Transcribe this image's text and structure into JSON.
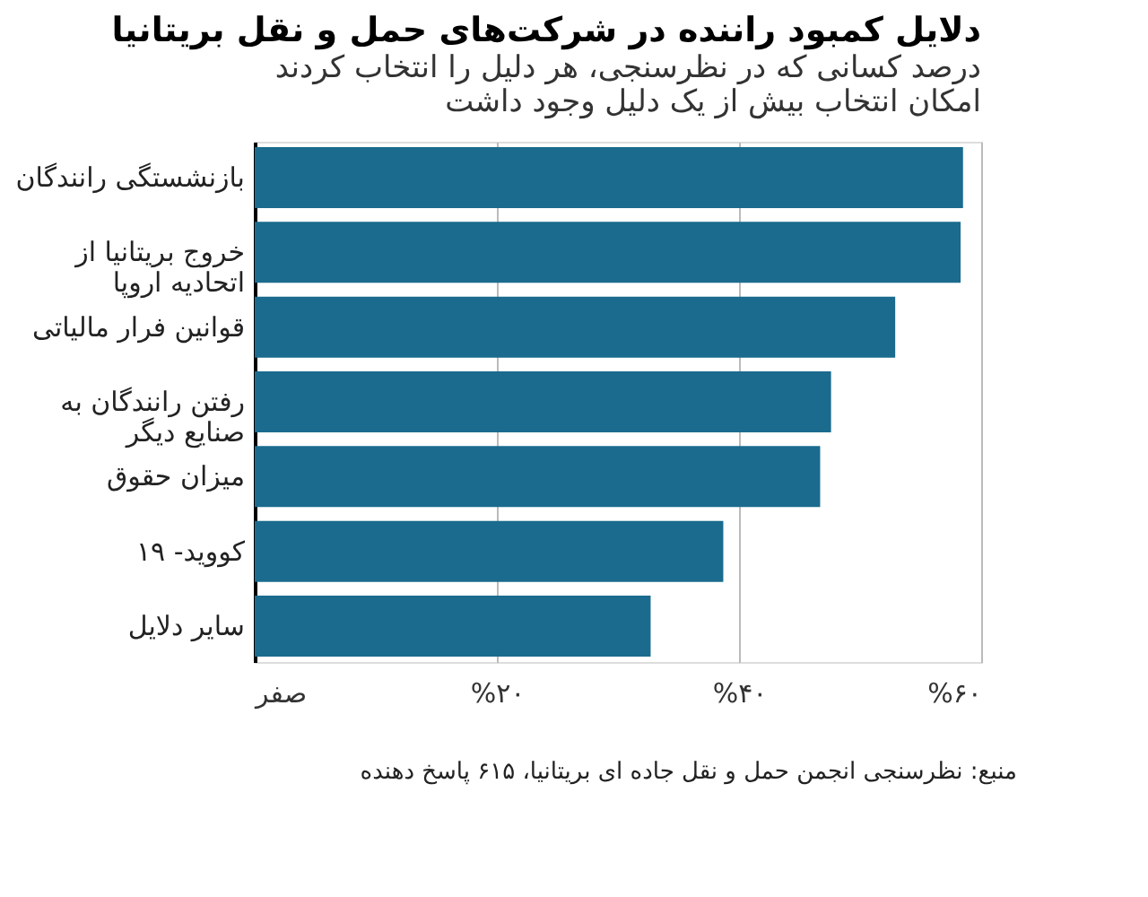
{
  "chart_data": {
    "type": "bar",
    "orientation": "horizontal",
    "title": "دلایل کمبود راننده در شرکت‌های حمل و نقل بریتانیا",
    "subtitle": "درصد کسانی که در نظرسنجی، هر دلیل را انتخاب کردند\nامکان انتخاب بیش از یک دلیل وجود داشت",
    "categories": [
      "بازنشستگی رانندگان",
      "خروج بریتانیا از\nاتحادیه اروپا",
      "قوانین فرار مالیاتی",
      "رفتن رانندگان به\nصنایع دیگر",
      "میزان حقوق",
      "کووید- ۱۹",
      "سایر دلایل"
    ],
    "values": [
      58.5,
      58.3,
      52.9,
      47.6,
      46.7,
      38.7,
      32.7
    ],
    "color": "#1a6b8e",
    "xlim": [
      0,
      60
    ],
    "xticks": [
      {
        "value": 0,
        "label": "صفر"
      },
      {
        "value": 20,
        "label": "%۲۰"
      },
      {
        "value": 40,
        "label": "%۴۰"
      },
      {
        "value": 60,
        "label": "%۶۰"
      }
    ],
    "grid": "x",
    "annotations": [
      "منبع: نظرسنجی انجمن حمل و نقل جاده ای بریتانیا، ۶۱۵ پاسخ دهنده"
    ]
  }
}
